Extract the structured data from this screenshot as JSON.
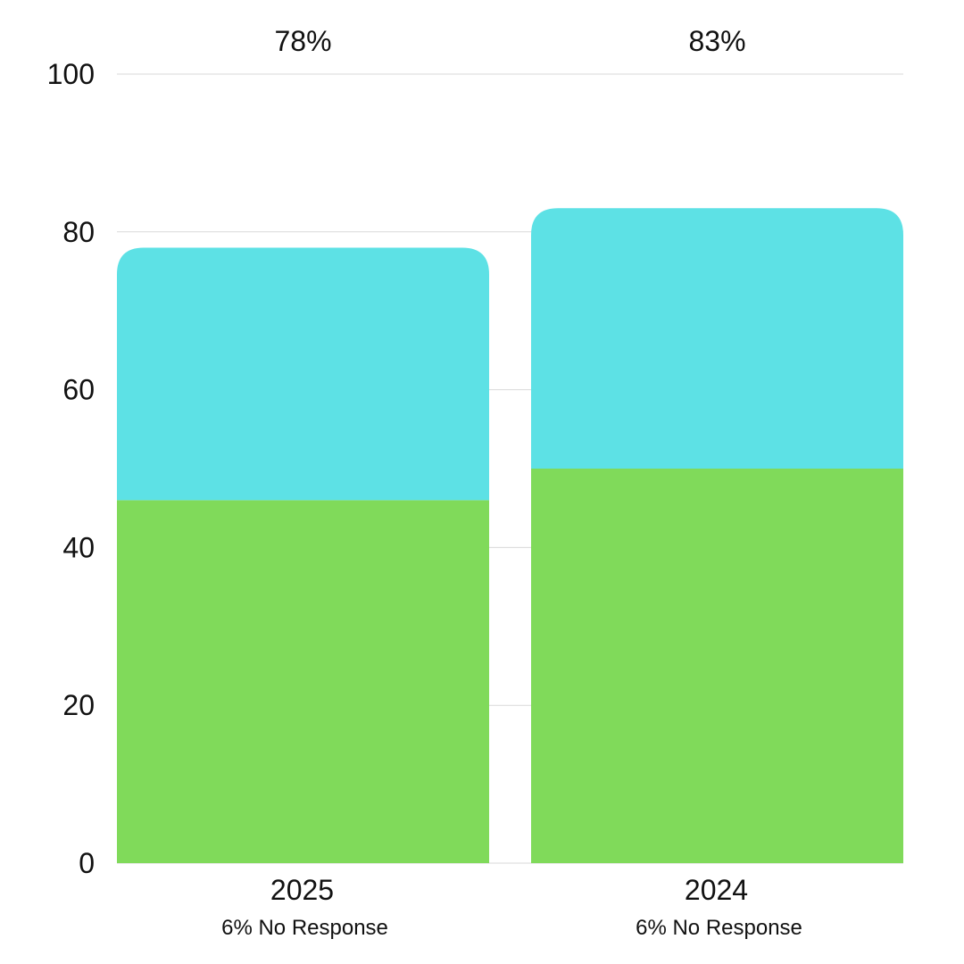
{
  "chart_data": {
    "type": "bar",
    "stacked": true,
    "categories": [
      "2025",
      "2024"
    ],
    "category_notes": [
      "6% No Response",
      "6% No Response"
    ],
    "totals": [
      "78%",
      "83%"
    ],
    "series": [
      {
        "values": [
          46,
          50
        ],
        "color": "#80da5a"
      },
      {
        "values": [
          32,
          33
        ],
        "color": "#5de1e5"
      }
    ],
    "ylim": [
      0,
      100
    ],
    "yticks": [
      0,
      20,
      40,
      60,
      80,
      100
    ],
    "grid": true
  }
}
